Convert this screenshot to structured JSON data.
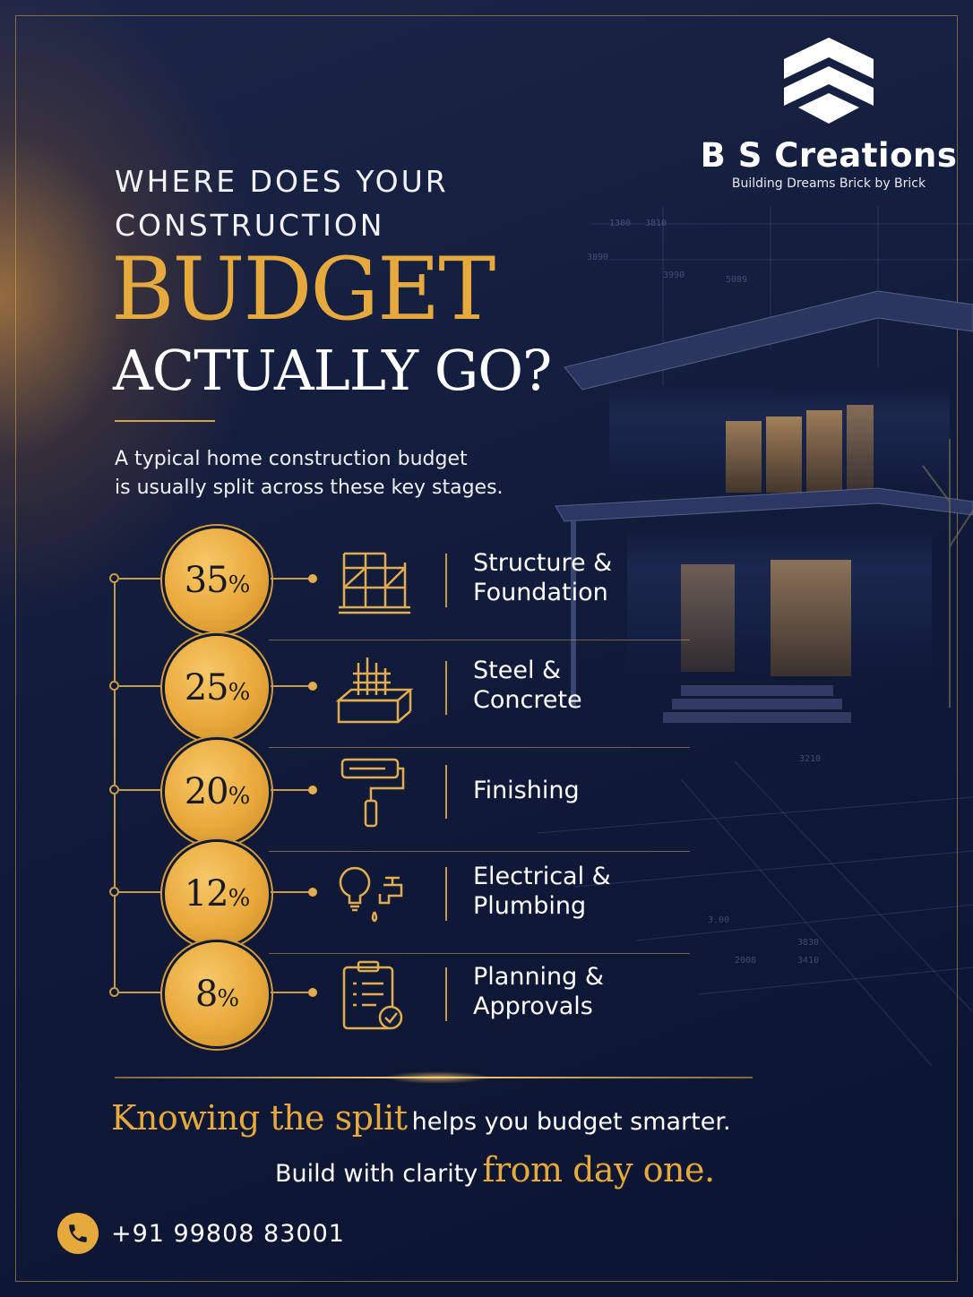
{
  "brand": {
    "name": "B S Creations",
    "tagline": "Building Dreams Brick by Brick",
    "logo_icon": "stacked-chevrons-house-logo"
  },
  "headline": {
    "kicker_line1": "WHERE DOES YOUR",
    "kicker_line2": "CONSTRUCTION",
    "emphasis": "BUDGET",
    "rest": "ACTUALLY GO?"
  },
  "intro": {
    "line1": "A typical home construction budget",
    "line2": "is usually split across these key stages."
  },
  "stages": [
    {
      "percent": "35",
      "unit": "%",
      "label_line1": "Structure &",
      "label_line2": "Foundation",
      "icon": "scaffold-structure-icon"
    },
    {
      "percent": "25",
      "unit": "%",
      "label_line1": "Steel &",
      "label_line2": "Concrete",
      "icon": "rebar-concrete-icon"
    },
    {
      "percent": "20",
      "unit": "%",
      "label_line1": "Finishing",
      "label_line2": "",
      "icon": "paint-roller-icon"
    },
    {
      "percent": "12",
      "unit": "%",
      "label_line1": "Electrical &",
      "label_line2": "Plumbing",
      "icon": "bulb-tap-icon"
    },
    {
      "percent": "8",
      "unit": "%",
      "label_line1": "Planning &",
      "label_line2": "Approvals",
      "icon": "clipboard-check-icon"
    }
  ],
  "footer": {
    "line1_gold": "Knowing the split",
    "line1_rest": "helps you budget smarter.",
    "line2_rest": "Build with clarity",
    "line2_gold": "from day one.",
    "phone": "+91 99808 83001",
    "phone_icon": "phone-icon"
  },
  "colors": {
    "background": "#111b3a",
    "gold": "#e6a93e",
    "text": "#ffffff"
  }
}
